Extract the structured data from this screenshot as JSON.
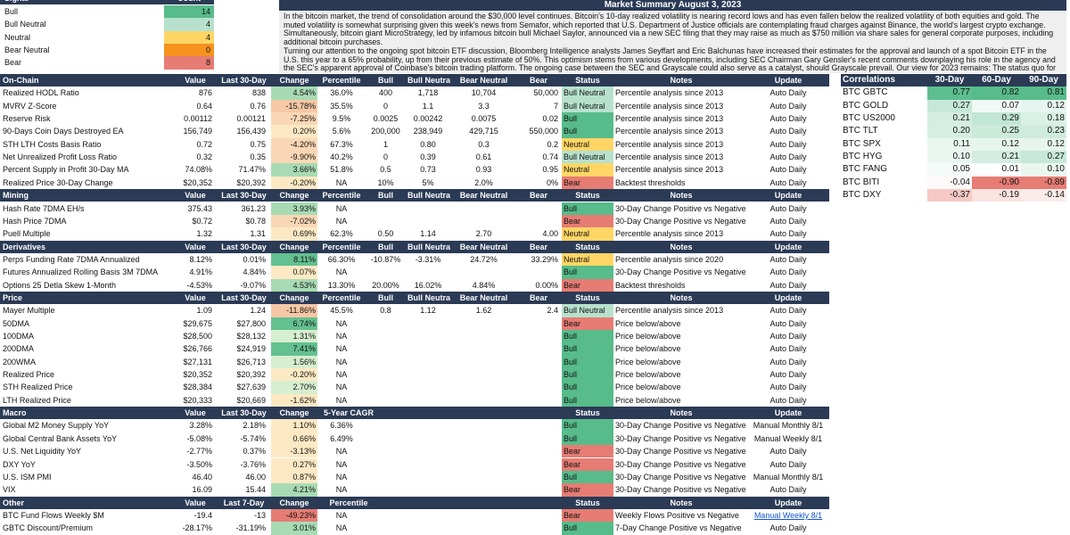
{
  "status_colors": {
    "Bull": "#57bb8a",
    "Bull Neutral": "#b7e1cd",
    "Neutral": "#ffd666",
    "Bear Neutral": "#f6921e",
    "Bear": "#e67c73"
  },
  "header_color": "#2b3a55",
  "signal": {
    "headers": [
      "Signal",
      "Count"
    ],
    "rows": [
      {
        "label": "Bull",
        "count": "14"
      },
      {
        "label": "Bull Neutral",
        "count": "4"
      },
      {
        "label": "Neutral",
        "count": "4"
      },
      {
        "label": "Bear Neutral",
        "count": "0"
      },
      {
        "label": "Bear",
        "count": "8"
      }
    ]
  },
  "summary": {
    "title": "Market Summary August 3, 2023",
    "paragraphs": [
      "In the bitcoin market, the trend of consolidation around the $30,000 level continues. Bitcoin's 10-day realized volatility is nearing record lows and has even fallen below the realized volatility of both equities and gold. The muted volatility is somewhat surprising given this week's news from Semafor, which reported that U.S. Department of Justice officials are contemplating fraud charges against Binance, the world's largest crypto exchange. Simultaneously, bitcoin giant MicroStrategy, led by infamous bitcoin bull Michael Saylor, announced via a new SEC filing that they may raise as much as $750 million via share sales for general corporate purposes, including additional bitcoin purchases.",
      "Turning our attention to the ongoing spot bitcoin ETF discussion, Bloomberg Intelligence analysts James Seyffart and Eric Balchunas have increased their estimates for the approval and launch of a spot Bitcoin ETF in the U.S. this year to a 65% probability, up from their previous estimate of 50%. This optimism stems from various developments, including SEC Chairman Gary Gensler's recent comments downplaying his role in the agency and the SEC's apparent approval of Coinbase's bitcoin trading platform. The ongoing case between the SEC and Grayscale could also serve as a catalyst, should Grayscale prevail. Our view for 2023 remains: The status quo for the bitcoin market will be further consolidation and muted levels of volatility, leading into a 2024 year with plenty of bullish catalysts on the horizon."
    ]
  },
  "sections": [
    {
      "headers": [
        "On-Chain",
        "Value",
        "Last 30-Day",
        "Change",
        "Percentile",
        "Bull",
        "Bull Neutral",
        "Bear Neutral",
        "Bear",
        "Status",
        "Notes",
        "Update"
      ],
      "rows": [
        [
          "Realized HODL Ratio",
          "876",
          "838",
          "4.54%",
          "36.0%",
          "400",
          "1,718",
          "10,704",
          "50,000",
          "Bull Neutral",
          "Percentile analysis since 2013",
          "Auto Daily"
        ],
        [
          "MVRV Z-Score",
          "0.64",
          "0.76",
          "-15.78%",
          "35.5%",
          "0",
          "1.1",
          "3.3",
          "7",
          "Bull Neutral",
          "Percentile analysis since 2013",
          "Auto Daily"
        ],
        [
          "Reserve Risk",
          "0.00112",
          "0.00121",
          "-7.25%",
          "9.5%",
          "0.0025",
          "0.00242",
          "0.0075",
          "0.02",
          "Bull",
          "Percentile analysis since 2013",
          "Auto Daily"
        ],
        [
          "90-Days Coin Days Destroyed EA",
          "156,749",
          "156,439",
          "0.20%",
          "5.6%",
          "200,000",
          "238,949",
          "429,715",
          "550,000",
          "Bull",
          "Percentile analysis since 2013",
          "Auto Daily"
        ],
        [
          "STH LTH Costs Basis Ratio",
          "0.72",
          "0.75",
          "-4.20%",
          "67.3%",
          "1",
          "0.80",
          "0.3",
          "0.2",
          "Neutral",
          "Percentile analysis since 2013",
          "Auto Daily"
        ],
        [
          "Net Unrealized Profit Loss Ratio",
          "0.32",
          "0.35",
          "-9.90%",
          "40.2%",
          "0",
          "0.39",
          "0.61",
          "0.74",
          "Bull Neutral",
          "Percentile analysis since 2013",
          "Auto Daily"
        ],
        [
          "Percent Supply in Profit 30-Day MA",
          "74.08%",
          "71.47%",
          "3.66%",
          "51.8%",
          "0.5",
          "0.73",
          "0.93",
          "0.95",
          "Neutral",
          "Percentile analysis since 2013",
          "Auto Daily"
        ],
        [
          "Realized Price 30-Day Change",
          "$20,352",
          "$20,392",
          "-0.20%",
          "NA",
          "10%",
          "5%",
          "2.0%",
          "0%",
          "Bear",
          "Backtest thresholds",
          "Auto Daily"
        ]
      ]
    },
    {
      "headers": [
        "Mining",
        "Value",
        "Last 30-Day",
        "Change",
        "Percentile",
        "Bull",
        "Bull Neutral",
        "Bear Neutral",
        "Bear",
        "Status",
        "Notes",
        "Update"
      ],
      "rows": [
        [
          "Hash Rate 7DMA EH/s",
          "375.43",
          "361.23",
          "3.93%",
          "NA",
          "",
          "",
          "",
          "",
          "Bull",
          "30-Day Change Positive vs Negative",
          "Auto Daily"
        ],
        [
          "Hash Price 7DMA",
          "$0.72",
          "$0.78",
          "-7.02%",
          "NA",
          "",
          "",
          "",
          "",
          "Bear",
          "30-Day Change Positive vs Negative",
          "Auto Daily"
        ],
        [
          "Puell Multiple",
          "1.32",
          "1.31",
          "0.69%",
          "62.3%",
          "0.50",
          "1.14",
          "2.70",
          "4.00",
          "Neutral",
          "Percentile analysis since 2013",
          "Auto Daily"
        ]
      ]
    },
    {
      "headers": [
        "Derivatives",
        "Value",
        "Last 30-Day",
        "Change",
        "Percentile",
        "Bull",
        "Bull Neutral",
        "Bear Neutral",
        "Bear",
        "Status",
        "Notes",
        "Update"
      ],
      "rows": [
        [
          "Perps Funding Rate 7DMA Annualized",
          "8.12%",
          "0.01%",
          "8.11%",
          "66.30%",
          "-10.87%",
          "-3.31%",
          "24.72%",
          "33.29%",
          "Neutral",
          "Percentile analysis since 2020",
          "Auto Daily"
        ],
        [
          "Futures Annualized Rolling Basis 3M 7DMA",
          "4.91%",
          "4.84%",
          "0.07%",
          "NA",
          "",
          "",
          "",
          "",
          "Bull",
          "30-Day Change Positive vs Negative",
          "Auto Daily"
        ],
        [
          "Options 25 Detla Skew 1-Month",
          "-4.53%",
          "-9.07%",
          "4.53%",
          "13.30%",
          "20.00%",
          "16.02%",
          "4.84%",
          "0.00%",
          "Bear",
          "Backtest thresholds",
          "Auto Daily"
        ]
      ]
    },
    {
      "headers": [
        "Price",
        "Value",
        "Last 30-Day",
        "Change",
        "Percentile",
        "Bull",
        "Bull Neutral",
        "Bear Neutral",
        "Bear",
        "Status",
        "Notes",
        "Update"
      ],
      "rows": [
        [
          "Mayer Multiple",
          "1.09",
          "1.24",
          "-11.86%",
          "45.5%",
          "0.8",
          "1.12",
          "1.62",
          "2.4",
          "Bull Neutral",
          "Percentile analysis since 2013",
          "Auto Daily"
        ],
        [
          "50DMA",
          "$29,675",
          "$27,800",
          "6.74%",
          "NA",
          "",
          "",
          "",
          "",
          "Bear",
          "Price below/above",
          "Auto Daily"
        ],
        [
          "100DMA",
          "$28,500",
          "$28,132",
          "1.31%",
          "NA",
          "",
          "",
          "",
          "",
          "Bull",
          "Price below/above",
          "Auto Daily"
        ],
        [
          "200DMA",
          "$26,766",
          "$24,919",
          "7.41%",
          "NA",
          "",
          "",
          "",
          "",
          "Bull",
          "Price below/above",
          "Auto Daily"
        ],
        [
          "200WMA",
          "$27,131",
          "$26,713",
          "1.56%",
          "NA",
          "",
          "",
          "",
          "",
          "Bull",
          "Price below/above",
          "Auto Daily"
        ],
        [
          "Realized Price",
          "$20,352",
          "$20,392",
          "-0.20%",
          "NA",
          "",
          "",
          "",
          "",
          "Bull",
          "Price below/above",
          "Auto Daily"
        ],
        [
          "STH Realized Price",
          "$28,384",
          "$27,639",
          "2.70%",
          "NA",
          "",
          "",
          "",
          "",
          "Bull",
          "Price below/above",
          "Auto Daily"
        ],
        [
          "LTH Realized Price",
          "$20,333",
          "$20,669",
          "-1.62%",
          "NA",
          "",
          "",
          "",
          "",
          "Bull",
          "Price below/above",
          "Auto Daily"
        ]
      ]
    },
    {
      "headers": [
        "Macro",
        "Value",
        "Last 30-Day",
        "Change",
        "5-Year CAGR",
        "",
        "",
        "",
        "",
        "Status",
        "Notes",
        "Update"
      ],
      "rows": [
        [
          "Global M2 Money Supply YoY",
          "3.28%",
          "2.18%",
          "1.10%",
          "6.36%",
          "",
          "",
          "",
          "",
          "Bull",
          "30-Day Change Positive vs Negative",
          "Manual Monthly 8/1"
        ],
        [
          "Global Central Bank Assets YoY",
          "-5.08%",
          "-5.74%",
          "0.66%",
          "6.49%",
          "",
          "",
          "",
          "",
          "Bull",
          "30-Day Change Positive vs Negative",
          "Manual Weekly 8/1"
        ],
        [
          "U.S. Net Liquidity YoY",
          "-2.77%",
          "0.37%",
          "-3.13%",
          "NA",
          "",
          "",
          "",
          "",
          "Bear",
          "30-Day Change Positive vs Negative",
          "Auto Daily"
        ],
        [
          "DXY YoY",
          "-3.50%",
          "-3.76%",
          "0.27%",
          "NA",
          "",
          "",
          "",
          "",
          "Bear",
          "30-Day Change Positive vs Negative",
          "Auto Daily"
        ],
        [
          "U.S. ISM PMI",
          "46.40",
          "46.00",
          "0.87%",
          "NA",
          "",
          "",
          "",
          "",
          "Bull",
          "30-Day Change Positive vs Negative",
          "Manual Monthly 8/1"
        ],
        [
          "VIX",
          "16.09",
          "15.44",
          "4.21%",
          "NA",
          "",
          "",
          "",
          "",
          "Bear",
          "30-Day Change Positive vs Negative",
          "Auto Daily"
        ]
      ]
    },
    {
      "headers": [
        "Other",
        "Value",
        "Last 7-Day",
        "Change",
        "Percentile",
        "",
        "",
        "",
        "",
        "Status",
        "Notes",
        "Update"
      ],
      "rows": [
        [
          "BTC Fund Flows Weekly $M",
          "-19.4",
          "-13",
          "-49.23%",
          "NA",
          "",
          "",
          "",
          "",
          "Bear",
          "Weekly Flows Positive vs Negative",
          "Manual Weekly 8/1"
        ],
        [
          "GBTC Discount/Premium",
          "-28.17%",
          "-31.19%",
          "3.01%",
          "NA",
          "",
          "",
          "",
          "",
          "Bull",
          "7-Day Change Positive vs Negative",
          "Auto Daily"
        ]
      ]
    }
  ],
  "link_cells": [
    "5.0.11"
  ],
  "correlations": {
    "headers": [
      "Correlations",
      "30-Day",
      "60-Day",
      "90-Day"
    ],
    "rows": [
      [
        "BTC GBTC",
        "0.77",
        "0.82",
        "0.81"
      ],
      [
        "BTC GOLD",
        "0.27",
        "0.07",
        "0.12"
      ],
      [
        "BTC US2000",
        "0.21",
        "0.29",
        "0.18"
      ],
      [
        "BTC TLT",
        "0.20",
        "0.25",
        "0.23"
      ],
      [
        "BTC SPX",
        "0.11",
        "0.12",
        "0.12"
      ],
      [
        "BTC HYG",
        "0.10",
        "0.21",
        "0.27"
      ],
      [
        "BTC FANG",
        "0.05",
        "0.01",
        "0.10"
      ],
      [
        "BTC BITI",
        "-0.04",
        "-0.90",
        "-0.89"
      ],
      [
        "BTC DXY",
        "-0.37",
        "-0.19",
        "-0.14"
      ]
    ]
  }
}
